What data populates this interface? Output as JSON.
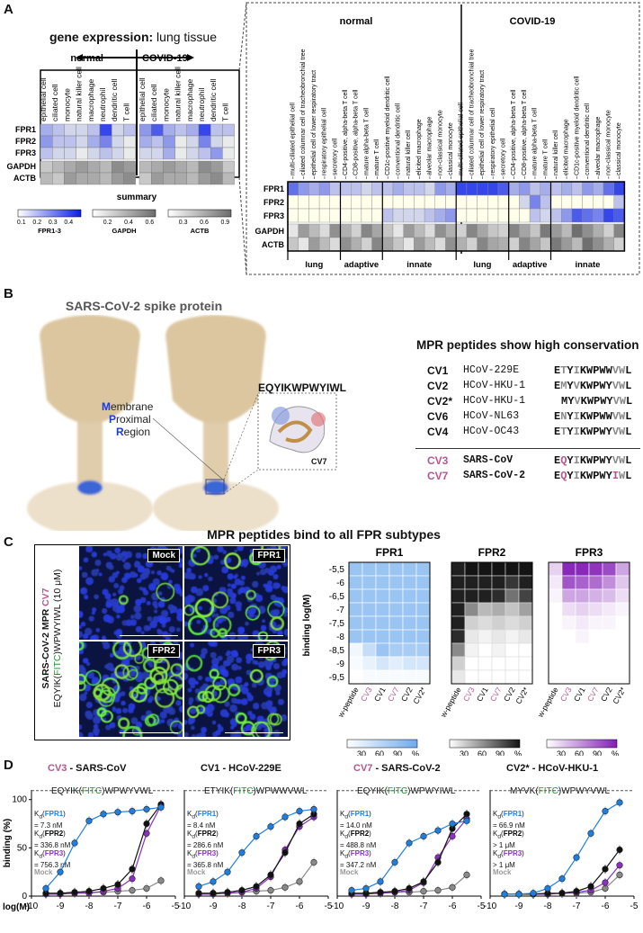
{
  "colors": {
    "fpr1": "#1f7fdf",
    "fpr2": "#111111",
    "fpr3": "#8b2fc0",
    "mock": "#8a8a8a",
    "pink": "#b5578f",
    "green": "#1c9b2a",
    "heat_blue": "#1a3be0"
  },
  "panelA": {
    "letter": "A",
    "title_bold": "gene expression:",
    "title_rest": " lung tissue",
    "normal": "normal",
    "covid": "COVID-19",
    "left_cells": [
      "epithelial cell",
      "ciliated cell",
      "monocyte",
      "natural killer cell",
      "macrophage",
      "neutrophil",
      "dendritic cell",
      "T cell"
    ],
    "rows": [
      "FPR1",
      "FPR2",
      "FPR3",
      "GAPDH",
      "ACTB"
    ],
    "summary": "summary",
    "legend_fpr": {
      "label": "FPR1-3",
      "ticks": [
        "0.1",
        "0.2",
        "0.3",
        "0.4"
      ]
    },
    "legend_gapdh": {
      "label": "GAPDH",
      "ticks": [
        "0.2",
        "0.4",
        "0.6"
      ]
    },
    "legend_actb": {
      "label": "ACTB",
      "ticks": [
        "0.3",
        "0.6",
        "0.9"
      ]
    },
    "right_cells": [
      "multi-ciliated epithelial cell",
      "ciliated columnar cell of tracheobronchial tree",
      "epithelial cell of lower respiratory tract",
      "respiratory epithelial cell",
      "secretory cell",
      "CD4-positive, alpha-beta T cell",
      "CD8-positive, alpha-beta T cell",
      "mature alpha-beta T cell",
      "mature T cell",
      "CD1c-positive myeloid dendritic cell",
      "conventional dendritic cell",
      "natural killer cell",
      "elicited macrophage",
      "alveolar macrophage",
      "non-classical monocyte",
      "classical monocyte"
    ],
    "right_cells_covid": [
      "multi-ciliated epithelial cell",
      "ciliated columnar cell of tracheobronchial tree",
      "epithelial cell of lower respiratory tract",
      "respiratory epithelial cell",
      "secretory cell",
      "CD4-positive, alpha-beta T cell",
      "CD8-positive, alpha-beta T cell",
      "mature alpha-beta T cell",
      "mature T cell",
      "natural killer cell",
      "elicited macrophage",
      "CD1c-positive myeloid dendritic cell",
      "conventional dendritic cell",
      "alveolar macrophage",
      "non-classical monocyte",
      "classical monocyte"
    ],
    "groups": [
      "lung",
      "adaptive",
      "innate"
    ]
  },
  "panelB": {
    "letter": "B",
    "title": "SARS-CoV-2 spike protein",
    "mpr": [
      "M",
      "embrane",
      "P",
      "roximal",
      "R",
      "egion"
    ],
    "seq_label": "EQYIKWPWYIWL",
    "inset_label": "CV7",
    "conservation_title": "MPR peptides show high conservation",
    "peptides": [
      {
        "id": "CV1",
        "virus": "HCoV-229E",
        "seq": "ETYIKWPWWVWL"
      },
      {
        "id": "CV2",
        "virus": "HCoV-HKU-1",
        "seq": "EMYVKWPWYVWL"
      },
      {
        "id": "CV2*",
        "virus": "HCoV-HKU-1",
        "seq": "MYVKWPWYVWL"
      },
      {
        "id": "CV6",
        "virus": "HCoV-NL63",
        "seq": "ENYIKWPWWVWL"
      },
      {
        "id": "CV4",
        "virus": "HCoV-OC43",
        "seq": "ETYIKWPWYVWL"
      },
      {
        "id": "CV3",
        "virus": "SARS-CoV",
        "seq": "EQYIKWPWYVWL"
      },
      {
        "id": "CV7",
        "virus": "SARS-CoV-2",
        "seq": "EQYIKWPWYIWL"
      }
    ]
  },
  "panelC": {
    "letter": "C",
    "title": "MPR peptides bind to all FPR subtypes",
    "side_label_1": "SARS-CoV-2 MPR ",
    "side_label_cv7": "CV7",
    "side_seq_a": "EQYIK(",
    "side_fitc": "FITC",
    "side_seq_b": ")WPWYIWL (10 μM)",
    "micro_labels": [
      "Mock",
      "FPR1",
      "FPR2",
      "FPR3"
    ],
    "heat_titles": [
      "FPR1",
      "FPR2",
      "FPR3"
    ],
    "ylabel": "binding log(M)",
    "yticks": [
      "-5,5",
      "-6",
      "-6,5",
      "-7",
      "-7,5",
      "-8",
      "-8,5",
      "-9",
      "-9,5"
    ],
    "xticks": [
      "w-peptide",
      "CV3",
      "CV1",
      "CV7",
      "CV2",
      "CV2*"
    ],
    "legend_ticks": [
      "30",
      "60",
      "90",
      "%"
    ]
  },
  "panelD": {
    "letter": "D",
    "ylabel": "binding (%)",
    "yticks": [
      "0",
      "50",
      "100"
    ],
    "xlabel": "log(M)",
    "xticks": [
      "-10",
      "-9",
      "-8",
      "-7",
      "-6",
      "-5"
    ],
    "charts": [
      {
        "id": "CV3",
        "virus": " - SARS-CoV",
        "seq_a": "EQYIK(",
        "seq_b": ")WPWYVWL",
        "kd1": "= 7.3 nM",
        "kd2": "= 336.8 nM",
        "kd3": "= 756.3 nM"
      },
      {
        "id": "CV1",
        "virus": " - HCoV-229E",
        "seq_a": "ETYIK(",
        "seq_b": ")WPWWVWL",
        "kd1": "= 8.4 nM",
        "kd2": "= 286.6 nM",
        "kd3": "= 365.8 nM"
      },
      {
        "id": "CV7",
        "virus": " - SARS-CoV-2",
        "seq_a": "EQYIK(",
        "seq_b": ")WPWYIWL",
        "kd1": "= 14.0 nM",
        "kd2": "= 488.8 nM",
        "kd3": "= 347.2 nM"
      },
      {
        "id": "CV2*",
        "virus": " - HCoV-HKU-1",
        "seq_a": "MYVK(",
        "seq_b": ")WPWYVWL",
        "kd1": "= 66.9 nM",
        "kd2": "> 1 μM",
        "kd3": "> 1 μM"
      }
    ],
    "kd_prefix": "K",
    "kd_sub": "d",
    "fpr_labels": [
      "FPR1",
      "FPR2",
      "FPR3"
    ],
    "fitc": "FITC",
    "mock": "Mock"
  },
  "chart_data": [
    {
      "type": "line",
      "title": "CV3 - SARS-CoV",
      "xlabel": "log(M)",
      "ylabel": "binding (%)",
      "xlim": [
        -10,
        -5
      ],
      "ylim": [
        0,
        110
      ],
      "x": [
        -9.5,
        -9,
        -8.5,
        -8,
        -7.5,
        -7,
        -6.5,
        -6,
        -5.5
      ],
      "series": [
        {
          "name": "FPR1",
          "values": [
            8,
            25,
            55,
            78,
            85,
            87,
            88,
            90,
            92
          ]
        },
        {
          "name": "FPR2",
          "values": [
            3,
            3,
            4,
            5,
            8,
            12,
            28,
            75,
            95
          ]
        },
        {
          "name": "FPR3",
          "values": [
            2,
            2,
            3,
            3,
            5,
            8,
            18,
            65,
            94
          ]
        },
        {
          "name": "Mock",
          "values": [
            3,
            3,
            3,
            4,
            4,
            5,
            6,
            8,
            16
          ]
        }
      ]
    },
    {
      "type": "line",
      "title": "CV1 - HCoV-229E",
      "xlabel": "log(M)",
      "ylabel": "binding (%)",
      "xlim": [
        -10,
        -5
      ],
      "ylim": [
        0,
        110
      ],
      "x": [
        -9.5,
        -9,
        -8.5,
        -8,
        -7.5,
        -7,
        -6.5,
        -6,
        -5.5
      ],
      "series": [
        {
          "name": "FPR1",
          "values": [
            10,
            15,
            25,
            45,
            62,
            72,
            82,
            88,
            90
          ]
        },
        {
          "name": "FPR2",
          "values": [
            3,
            3,
            4,
            6,
            10,
            22,
            45,
            75,
            85
          ]
        },
        {
          "name": "FPR3",
          "values": [
            2,
            2,
            3,
            4,
            8,
            20,
            48,
            72,
            82
          ]
        },
        {
          "name": "Mock",
          "values": [
            3,
            3,
            3,
            4,
            5,
            6,
            9,
            15,
            35
          ]
        }
      ]
    },
    {
      "type": "line",
      "title": "CV7 - SARS-CoV-2",
      "xlabel": "log(M)",
      "ylabel": "binding (%)",
      "xlim": [
        -10,
        -5
      ],
      "ylim": [
        0,
        110
      ],
      "x": [
        -9.5,
        -9,
        -8.5,
        -8,
        -7.5,
        -7,
        -6.5,
        -6,
        -5.5
      ],
      "series": [
        {
          "name": "FPR1",
          "values": [
            6,
            8,
            15,
            35,
            55,
            62,
            68,
            75,
            78
          ]
        },
        {
          "name": "FPR2",
          "values": [
            3,
            3,
            4,
            5,
            8,
            15,
            35,
            70,
            85
          ]
        },
        {
          "name": "FPR3",
          "values": [
            2,
            2,
            3,
            4,
            6,
            14,
            40,
            62,
            80
          ]
        },
        {
          "name": "Mock",
          "values": [
            3,
            3,
            3,
            4,
            4,
            5,
            6,
            9,
            22
          ]
        }
      ]
    },
    {
      "type": "line",
      "title": "CV2* - HCoV-HKU-1",
      "xlabel": "log(M)",
      "ylabel": "binding (%)",
      "xlim": [
        -10,
        -5
      ],
      "ylim": [
        0,
        110
      ],
      "x": [
        -9.5,
        -9,
        -8.5,
        -8,
        -7.5,
        -7,
        -6.5,
        -6,
        -5.5
      ],
      "series": [
        {
          "name": "FPR1",
          "values": [
            2,
            2,
            3,
            8,
            18,
            40,
            65,
            88,
            97
          ]
        },
        {
          "name": "FPR2",
          "values": [
            2,
            2,
            2,
            3,
            3,
            5,
            10,
            28,
            48
          ]
        },
        {
          "name": "FPR3",
          "values": [
            2,
            2,
            2,
            2,
            3,
            4,
            6,
            14,
            32
          ]
        },
        {
          "name": "Mock",
          "values": [
            2,
            2,
            2,
            2,
            3,
            3,
            4,
            8,
            22
          ]
        }
      ]
    }
  ]
}
